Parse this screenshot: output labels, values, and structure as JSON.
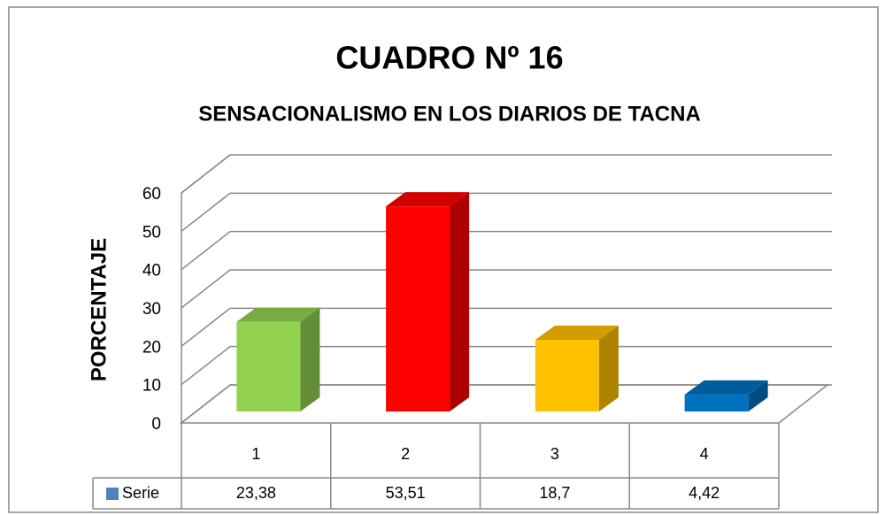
{
  "chart_data": {
    "type": "bar3d",
    "title": "CUADRO Nº 16",
    "subtitle": "SENSACIONALISMO EN LOS DIARIOS DE TACNA",
    "y_label": "PORCENTAJE",
    "categories": [
      "1",
      "2",
      "3",
      "4"
    ],
    "series": [
      {
        "name": "Serie",
        "color": "#4f81bd",
        "values": [
          23.38,
          53.51,
          18.7,
          4.42
        ],
        "value_labels": [
          "23,38",
          "53,51",
          "18,7",
          "4,42"
        ],
        "point_colors": [
          "#92d050",
          "#ff0000",
          "#ffc000",
          "#0070c0"
        ]
      }
    ],
    "ylim": [
      0,
      60
    ],
    "yticks": [
      0,
      10,
      20,
      30,
      40,
      50,
      60
    ],
    "grid": true,
    "legend": "bottom-left"
  }
}
